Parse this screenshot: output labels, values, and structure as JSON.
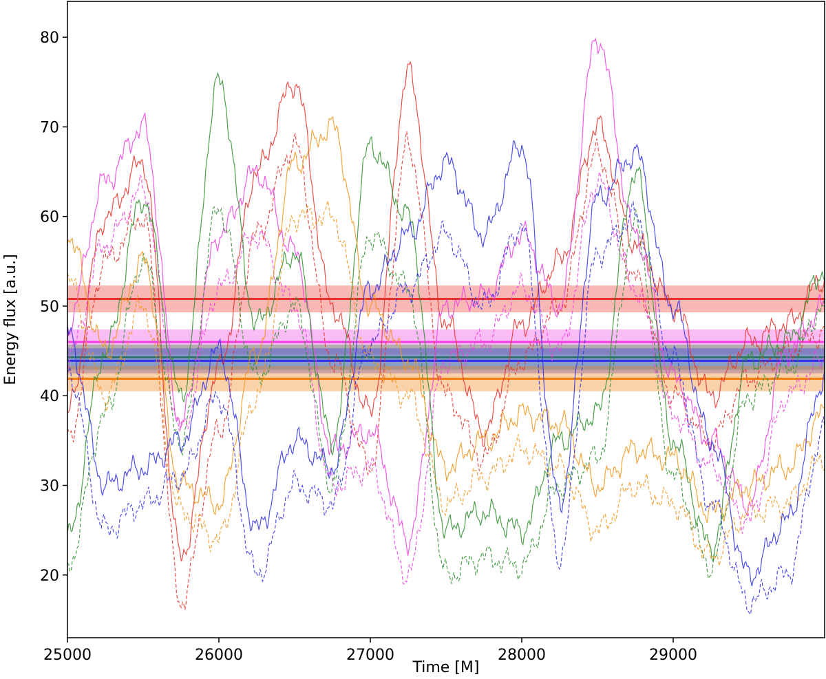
{
  "chart_data": {
    "type": "line",
    "title": "",
    "xlabel": "Time [M]",
    "ylabel": "Energy flux [a.u.]",
    "xlim": [
      25000,
      30000
    ],
    "ylim": [
      13,
      84
    ],
    "xticks": [
      25000,
      26000,
      27000,
      28000,
      29000
    ],
    "yticks": [
      20,
      30,
      40,
      50,
      60,
      70,
      80
    ],
    "x": [
      25000,
      25250,
      25500,
      25750,
      26000,
      26250,
      26500,
      26750,
      27000,
      27250,
      27500,
      27750,
      28000,
      28250,
      28500,
      28750,
      29000,
      29250,
      29500,
      29750,
      30000
    ],
    "series": [
      {
        "name": "red",
        "color": "#e8312a",
        "style": "solid",
        "values": [
          38,
          60,
          66,
          22,
          43,
          65,
          75,
          50,
          38,
          76,
          48,
          36,
          48,
          55,
          70,
          57,
          50,
          40,
          46,
          48,
          53
        ]
      },
      {
        "name": "red-dashed",
        "color": "#e8312a",
        "style": "dashed",
        "values": [
          35,
          55,
          60,
          17,
          36,
          58,
          68,
          44,
          32,
          68,
          40,
          33,
          44,
          50,
          67,
          53,
          40,
          35,
          42,
          45,
          47
        ]
      },
      {
        "name": "magenta",
        "color": "#f040e0",
        "style": "solid",
        "values": [
          48,
          64,
          70,
          37,
          58,
          65,
          56,
          34,
          36,
          24,
          50,
          51,
          58,
          50,
          80,
          58,
          42,
          35,
          28,
          45,
          50
        ]
      },
      {
        "name": "magenta-dashed",
        "color": "#f040e0",
        "style": "dashed",
        "values": [
          44,
          57,
          63,
          36,
          52,
          58,
          50,
          30,
          32,
          20,
          44,
          46,
          52,
          45,
          64,
          52,
          38,
          32,
          26,
          40,
          44
        ]
      },
      {
        "name": "green",
        "color": "#2f8f2f",
        "style": "solid",
        "values": [
          24,
          45,
          62,
          40,
          75,
          48,
          56,
          35,
          68,
          60,
          25,
          27,
          25,
          35,
          38,
          65,
          35,
          23,
          44,
          46,
          54
        ]
      },
      {
        "name": "green-dashed",
        "color": "#2f8f2f",
        "style": "dashed",
        "values": [
          21,
          38,
          55,
          35,
          61,
          42,
          50,
          30,
          58,
          52,
          20,
          22,
          21,
          30,
          33,
          59,
          31,
          21,
          40,
          43,
          50
        ]
      },
      {
        "name": "orange",
        "color": "#f0961e",
        "style": "solid",
        "values": [
          58,
          45,
          55,
          30,
          28,
          45,
          66,
          70,
          50,
          44,
          32,
          35,
          38,
          37,
          30,
          34,
          33,
          27,
          30,
          32,
          38
        ]
      },
      {
        "name": "orange-dashed",
        "color": "#f0961e",
        "style": "dashed",
        "values": [
          53,
          40,
          50,
          27,
          24,
          40,
          60,
          60,
          44,
          40,
          28,
          31,
          34,
          32,
          25,
          30,
          28,
          22,
          27,
          28,
          33
        ]
      },
      {
        "name": "blue",
        "color": "#3030e8",
        "style": "solid",
        "values": [
          47,
          30,
          32,
          35,
          45,
          25,
          35,
          32,
          52,
          58,
          66,
          58,
          68,
          28,
          62,
          67,
          50,
          35,
          20,
          26,
          42
        ]
      },
      {
        "name": "blue-dashed",
        "color": "#3030e8",
        "style": "dashed",
        "values": [
          43,
          25,
          28,
          31,
          40,
          20,
          30,
          28,
          46,
          52,
          58,
          50,
          59,
          22,
          56,
          60,
          44,
          28,
          17,
          20,
          36
        ]
      }
    ],
    "bands": [
      {
        "name": "red-mean",
        "color": "#e8312a",
        "mean": 50.8,
        "low": 49.3,
        "high": 52.3
      },
      {
        "name": "magenta-mean",
        "color": "#f040e0",
        "mean": 46.0,
        "low": 44.6,
        "high": 47.4
      },
      {
        "name": "green-mean",
        "color": "#2f8f2f",
        "mean": 44.3,
        "low": 42.9,
        "high": 45.7
      },
      {
        "name": "blue-mean",
        "color": "#3030e8",
        "mean": 43.9,
        "low": 42.5,
        "high": 45.3
      },
      {
        "name": "orange-mean",
        "color": "#f07d0a",
        "mean": 41.9,
        "low": 40.5,
        "high": 43.3
      }
    ]
  }
}
